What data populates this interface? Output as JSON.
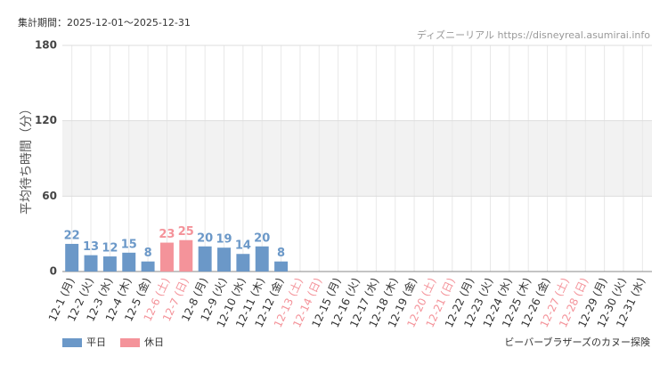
{
  "header": {
    "period": "集計期間：2025-12-01～2025-12-31",
    "source": "ディズニーリアル https://disneyreal.asumirai.info"
  },
  "chart_data": {
    "type": "bar",
    "title": "ビーバーブラザーズのカヌー探険",
    "y_label": "平均待ち時間（分）",
    "categories": [
      "12-1 (月)",
      "12-2 (火)",
      "12-3 (水)",
      "12-4 (木)",
      "12-5 (金)",
      "12-6 (土)",
      "12-7 (日)",
      "12-8 (月)",
      "12-9 (火)",
      "12-10 (水)",
      "12-11 (木)",
      "12-12 (金)",
      "12-13 (土)",
      "12-14 (日)",
      "12-15 (月)",
      "12-16 (火)",
      "12-17 (水)",
      "12-18 (木)",
      "12-19 (金)",
      "12-20 (土)",
      "12-21 (日)",
      "12-22 (月)",
      "12-23 (火)",
      "12-24 (水)",
      "12-25 (木)",
      "12-26 (金)",
      "12-27 (土)",
      "12-28 (日)",
      "12-29 (月)",
      "12-30 (火)",
      "12-31 (水)"
    ],
    "category_series": [
      0,
      0,
      0,
      0,
      0,
      1,
      1,
      0,
      0,
      0,
      0,
      0,
      1,
      1,
      0,
      0,
      0,
      0,
      0,
      1,
      1,
      0,
      0,
      0,
      0,
      0,
      1,
      1,
      0,
      0,
      0
    ],
    "series": [
      {
        "name": "平日",
        "color": "#6b98c8",
        "values": [
          22,
          13,
          12,
          15,
          8,
          null,
          null,
          20,
          19,
          14,
          20,
          8,
          null,
          null,
          null,
          null,
          null,
          null,
          null,
          null,
          null,
          null,
          null,
          null,
          null,
          null,
          null,
          null,
          null,
          null,
          null
        ]
      },
      {
        "name": "休日",
        "color": "#f4939a",
        "values": [
          null,
          null,
          null,
          null,
          null,
          23,
          25,
          null,
          null,
          null,
          null,
          null,
          null,
          null,
          null,
          null,
          null,
          null,
          null,
          null,
          null,
          null,
          null,
          null,
          null,
          null,
          null,
          null,
          null,
          null,
          null
        ]
      }
    ],
    "ylim": [
      0,
      180
    ],
    "yticks": [
      0,
      60,
      120,
      180
    ],
    "grid": true,
    "alternate_band": true
  }
}
